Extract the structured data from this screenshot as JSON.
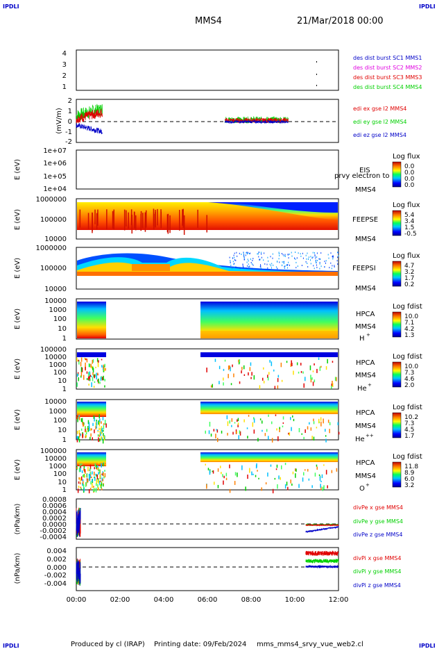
{
  "corner_label": "IPDLI",
  "header": {
    "spacecraft": "MMS4",
    "datetime": "21/Mar/2018 00:00"
  },
  "footer": {
    "producer": "Produced by cl (IRAP)",
    "printing_date": "Printing date: 09/Feb/2024",
    "script": "mms_mms4_srvy_vue_web2.cl"
  },
  "colors": {
    "red": "#e00000",
    "green": "#00d000",
    "blue": "#0000c8",
    "magenta": "#e000e0",
    "cyan": "#00c0ff",
    "orange": "#ff9900",
    "yellow": "#ffff00"
  },
  "time_axis": {
    "range": [
      "00:00",
      "12:00"
    ],
    "ticks": [
      "00:00",
      "02:00",
      "04:00",
      "06:00",
      "08:00",
      "10:00",
      "12:00"
    ]
  },
  "chart_data": [
    {
      "id": "des",
      "type": "table",
      "yticks": [
        "1",
        "2",
        "3",
        "4"
      ],
      "legend": [
        "des dist burst SC1 MMS1",
        "des dist burst SC2 MMS2",
        "des dist burst SC3 MMS3",
        "des dist burst SC4 MMS4"
      ],
      "legend_colors": [
        "#0000c8",
        "#e000e0",
        "#e00000",
        "#00d000"
      ]
    },
    {
      "id": "edi",
      "type": "line",
      "ylabel": "(mV/m)",
      "ylim": [
        -2,
        2
      ],
      "yticks": [
        "2",
        "1",
        "0",
        "-1",
        "-2"
      ],
      "legend": [
        "edi ex gse l2 MMS4",
        "edi ey gse l2 MMS4",
        "edi ez gse l2 MMS4"
      ],
      "legend_colors": [
        "#e00000",
        "#00d000",
        "#0000c8"
      ],
      "coverage": [
        [
          0,
          1.2
        ],
        [
          6.8,
          9.7
        ]
      ]
    },
    {
      "id": "eis",
      "type": "heatmap",
      "ylabel": "E (eV)",
      "ylim": [
        10000,
        10000000
      ],
      "scale": "log",
      "yticks": [
        "1e+07",
        "1e+06",
        "1e+05",
        "1e+04"
      ],
      "side_labels": [
        "EIS",
        "MMS4"
      ],
      "overlay_label": "prvy electron to",
      "colorbar": {
        "title": "Log flux",
        "values": [
          "0.0",
          "0.0",
          "0.0",
          "0.0"
        ]
      }
    },
    {
      "id": "feeps_e",
      "type": "heatmap",
      "ylabel": "E (eV)",
      "ylim": [
        10000,
        1000000
      ],
      "scale": "log",
      "yticks": [
        "1000000",
        "100000",
        "10000"
      ],
      "side_labels": [
        "FEEPSE",
        "MMS4"
      ],
      "colorbar": {
        "title": "Log flux",
        "values": [
          "5.4",
          "3.4",
          "1.5",
          "-0.5"
        ]
      }
    },
    {
      "id": "feeps_i",
      "type": "heatmap",
      "ylabel": "E (eV)",
      "ylim": [
        10000,
        1000000
      ],
      "scale": "log",
      "yticks": [
        "1000000",
        "100000",
        "10000"
      ],
      "side_labels": [
        "FEEPSI",
        "MMS4"
      ],
      "colorbar": {
        "title": "Log flux",
        "values": [
          "4.7",
          "3.2",
          "1.7",
          "0.2"
        ]
      }
    },
    {
      "id": "hpca_h",
      "type": "heatmap",
      "ylabel": "E (eV)",
      "ylim": [
        1,
        10000
      ],
      "scale": "log",
      "yticks": [
        "10000",
        "1000",
        "100",
        "10",
        "1"
      ],
      "side_labels": [
        "HPCA",
        "MMS4"
      ],
      "species": "H",
      "charge": "+",
      "colorbar": {
        "title": "Log fdist",
        "values": [
          "10.0",
          "7.1",
          "4.2",
          "1.3"
        ]
      },
      "coverage": [
        [
          0,
          1.35
        ],
        [
          5.8,
          12
        ]
      ]
    },
    {
      "id": "hpca_he",
      "type": "heatmap",
      "ylabel": "E (eV)",
      "ylim": [
        1,
        100000
      ],
      "scale": "log",
      "yticks": [
        "100000",
        "10000",
        "1000",
        "100",
        "10",
        "1"
      ],
      "side_labels": [
        "HPCA",
        "MMS4"
      ],
      "species": "He",
      "charge": "+",
      "colorbar": {
        "title": "Log fdist",
        "values": [
          "10.0",
          "7.3",
          "4.6",
          "2.0"
        ]
      },
      "coverage": [
        [
          0,
          1.35
        ],
        [
          5.8,
          12
        ]
      ]
    },
    {
      "id": "hpca_he2",
      "type": "heatmap",
      "ylabel": "E (eV)",
      "ylim": [
        1,
        10000
      ],
      "scale": "log",
      "yticks": [
        "10000",
        "1000",
        "100",
        "10",
        "1"
      ],
      "side_labels": [
        "HPCA",
        "MMS4"
      ],
      "species": "He",
      "charge": "++",
      "colorbar": {
        "title": "Log fdist",
        "values": [
          "10.2",
          "7.3",
          "4.5",
          "1.7"
        ]
      },
      "coverage": [
        [
          0,
          1.35
        ],
        [
          5.8,
          12
        ]
      ]
    },
    {
      "id": "hpca_o",
      "type": "heatmap",
      "ylabel": "E (eV)",
      "ylim": [
        1,
        100000
      ],
      "scale": "log",
      "yticks": [
        "100000",
        "10000",
        "1000",
        "100",
        "10",
        "1"
      ],
      "side_labels": [
        "HPCA",
        "MMS4"
      ],
      "species": "O",
      "charge": "+",
      "colorbar": {
        "title": "Log fdist",
        "values": [
          "11.8",
          "8.9",
          "6.0",
          "3.2"
        ]
      },
      "coverage": [
        [
          0,
          1.35
        ],
        [
          5.8,
          12
        ]
      ]
    },
    {
      "id": "divpe",
      "type": "line",
      "ylabel": "(nPa/km)",
      "ylim": [
        -0.0004,
        0.0008
      ],
      "yticks": [
        "0.0008",
        "0.0006",
        "0.0004",
        "0.0002",
        "0.0000",
        "-0.0002",
        "-0.0004"
      ],
      "legend": [
        "divPe x gse MMS4",
        "divPe y gse MMS4",
        "divPe z gse MMS4"
      ],
      "legend_colors": [
        "#e00000",
        "#00d000",
        "#0000c8"
      ],
      "coverage": [
        [
          0,
          0.2
        ],
        [
          10.5,
          12
        ]
      ]
    },
    {
      "id": "divpi",
      "type": "line",
      "ylabel": "(nPa/km)",
      "ylim": [
        -0.005,
        0.004
      ],
      "yticks": [
        "0.004",
        "0.002",
        "0.000",
        "-0.002",
        "-0.004"
      ],
      "legend": [
        "divPi x gse MMS4",
        "divPi y gse MMS4",
        "divPi z gse MMS4"
      ],
      "legend_colors": [
        "#e00000",
        "#00d000",
        "#0000c8"
      ],
      "coverage": [
        [
          0,
          0.2
        ],
        [
          10.5,
          12
        ]
      ]
    }
  ]
}
